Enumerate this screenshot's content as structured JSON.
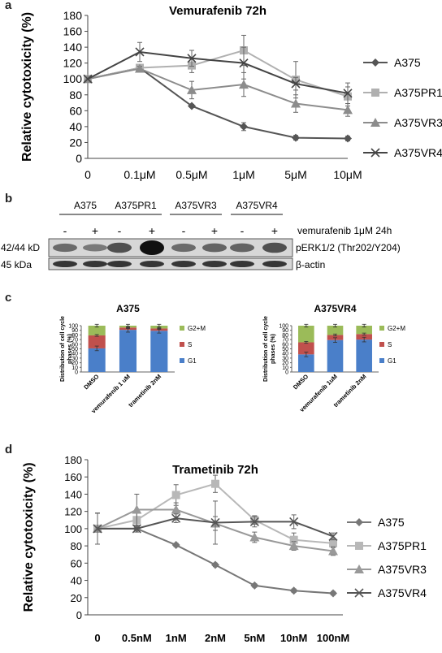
{
  "panel_letters": {
    "a": "a",
    "b": "b",
    "c": "c",
    "d": "d"
  },
  "chart_data": [
    {
      "type": "line",
      "title": "Vemurafenib 72h",
      "ylabel": "Relative cytotoxicity (%)",
      "xlabel": "",
      "categories": [
        "0",
        "0.1μM",
        "0.5μM",
        "1μM",
        "5μM",
        "10μM"
      ],
      "ylim": [
        0,
        180
      ],
      "yticks": [
        0,
        20,
        40,
        60,
        80,
        100,
        120,
        140,
        160,
        180
      ],
      "legend": "right",
      "series": [
        {
          "name": "A375",
          "marker": "diamond",
          "color": "#555555",
          "values": [
            100,
            114,
            66,
            40,
            26,
            25
          ],
          "err": [
            0,
            3,
            2,
            5,
            3,
            3
          ]
        },
        {
          "name": "A375PR1",
          "marker": "square",
          "color": "#b0b0b0",
          "values": [
            100,
            114,
            117,
            136,
            99,
            78
          ],
          "err": [
            0,
            3,
            9,
            19,
            23,
            12
          ]
        },
        {
          "name": "A375VR3",
          "marker": "triangle",
          "color": "#8c8c8c",
          "values": [
            100,
            113,
            86,
            93,
            69,
            61
          ],
          "err": [
            0,
            3,
            11,
            15,
            11,
            8
          ]
        },
        {
          "name": "A375VR4",
          "marker": "cross",
          "color": "#444444",
          "values": [
            100,
            134,
            126,
            120,
            94,
            82
          ],
          "err": [
            0,
            12,
            10,
            20,
            8,
            13
          ]
        }
      ]
    },
    {
      "type": "bar",
      "title": "A375",
      "ylabel": "Distribution of cell cycle phases (%)",
      "categories": [
        "DMSO",
        "vemurafenib 1 uM",
        "trametinib 2nM"
      ],
      "ylim": [
        0,
        100
      ],
      "yticks": [
        0,
        10,
        20,
        30,
        40,
        50,
        60,
        70,
        80,
        90,
        100
      ],
      "stacked": true,
      "legend": "right",
      "series": [
        {
          "name": "G1",
          "color": "#4a7fc9",
          "values": [
            51,
            91,
            89
          ]
        },
        {
          "name": "S",
          "color": "#c0504d",
          "values": [
            28,
            5,
            5
          ]
        },
        {
          "name": "G2+M",
          "color": "#9bbb59",
          "values": [
            21,
            4,
            6
          ]
        }
      ]
    },
    {
      "type": "bar",
      "title": "A375VR4",
      "ylabel": "Distribution of cell cycle phases (%)",
      "categories": [
        "DMSO",
        "vemurafenib 1uM",
        "trametinib 2nM"
      ],
      "ylim": [
        0,
        100
      ],
      "yticks": [
        0,
        10,
        20,
        30,
        40,
        50,
        60,
        70,
        80,
        90,
        100
      ],
      "stacked": true,
      "legend": "right",
      "series": [
        {
          "name": "G1",
          "color": "#4a7fc9",
          "values": [
            38,
            69,
            70
          ]
        },
        {
          "name": "S",
          "color": "#c0504d",
          "values": [
            26,
            11,
            12
          ]
        },
        {
          "name": "G2+M",
          "color": "#9bbb59",
          "values": [
            36,
            20,
            18
          ]
        }
      ]
    },
    {
      "type": "line",
      "title": "Trametinib 72h",
      "ylabel": "Relative cytotoxicity  (%)",
      "xlabel": "",
      "categories": [
        "0",
        "0.5nM",
        "1nM",
        "2nM",
        "5nM",
        "10nM",
        "100nM"
      ],
      "ylim": [
        0,
        180
      ],
      "yticks": [
        0,
        20,
        40,
        60,
        80,
        100,
        120,
        140,
        160,
        180
      ],
      "legend": "right",
      "series": [
        {
          "name": "A375",
          "marker": "diamond",
          "color": "#777777",
          "values": [
            100,
            100,
            81,
            58,
            34,
            28,
            25
          ],
          "err": [
            18,
            2,
            2,
            2,
            2,
            2,
            2
          ]
        },
        {
          "name": "A375PR1",
          "marker": "square",
          "color": "#b8b8b8",
          "values": [
            100,
            110,
            139,
            152,
            110,
            87,
            83
          ],
          "err": [
            18,
            8,
            12,
            10,
            5,
            8,
            5
          ]
        },
        {
          "name": "A375VR3",
          "marker": "triangle",
          "color": "#999999",
          "values": [
            100,
            122,
            122,
            106,
            90,
            80,
            74
          ],
          "err": [
            18,
            18,
            8,
            8,
            6,
            5,
            5
          ]
        },
        {
          "name": "A375VR4",
          "marker": "cross",
          "color": "#555555",
          "values": [
            100,
            100,
            112,
            107,
            108,
            108,
            91
          ],
          "err": [
            18,
            4,
            5,
            25,
            6,
            8,
            4
          ]
        }
      ]
    }
  ],
  "blot": {
    "groups": [
      "A375",
      "A375PR1",
      "A375VR3",
      "A375VR4"
    ],
    "treatment_signs": [
      "-",
      "+",
      "-",
      "+",
      "-",
      "+",
      "-",
      "+"
    ],
    "treatment_label": "vemurafenib 1μM 24h",
    "row1_left": "42/44 kD",
    "row1_right": "pERK1/2 (Thr202/Y204)",
    "row2_left": "45 kDa",
    "row2_right": "β-actin"
  }
}
